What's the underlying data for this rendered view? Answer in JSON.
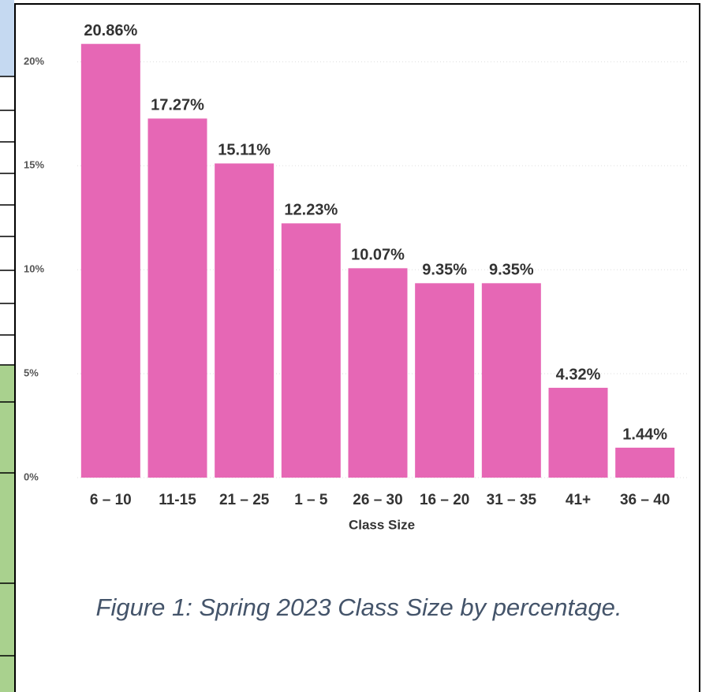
{
  "chart_data": {
    "type": "bar",
    "x_label": "Class Size",
    "categories": [
      "6 – 10",
      "11-15",
      "21 – 25",
      "1 – 5",
      "26 – 30",
      "16 – 20",
      "31 – 35",
      "41+",
      "36 – 40"
    ],
    "values": [
      20.86,
      17.27,
      15.11,
      12.23,
      10.07,
      9.35,
      9.35,
      4.32,
      1.44
    ],
    "value_labels": [
      "20.86%",
      "17.27%",
      "15.11%",
      "12.23%",
      "10.07%",
      "9.35%",
      "9.35%",
      "4.32%",
      "1.44%"
    ],
    "color": "#e667b5",
    "ylim": [
      0,
      21
    ],
    "yticks": [
      {
        "value": 0,
        "label": "0%"
      },
      {
        "value": 5,
        "label": "5%"
      },
      {
        "value": 10,
        "label": "10%"
      },
      {
        "value": 15,
        "label": "15%"
      },
      {
        "value": 20,
        "label": "20%"
      }
    ],
    "grid": true
  },
  "caption": "Figure 1: Spring 2023 Class Size by percentage."
}
